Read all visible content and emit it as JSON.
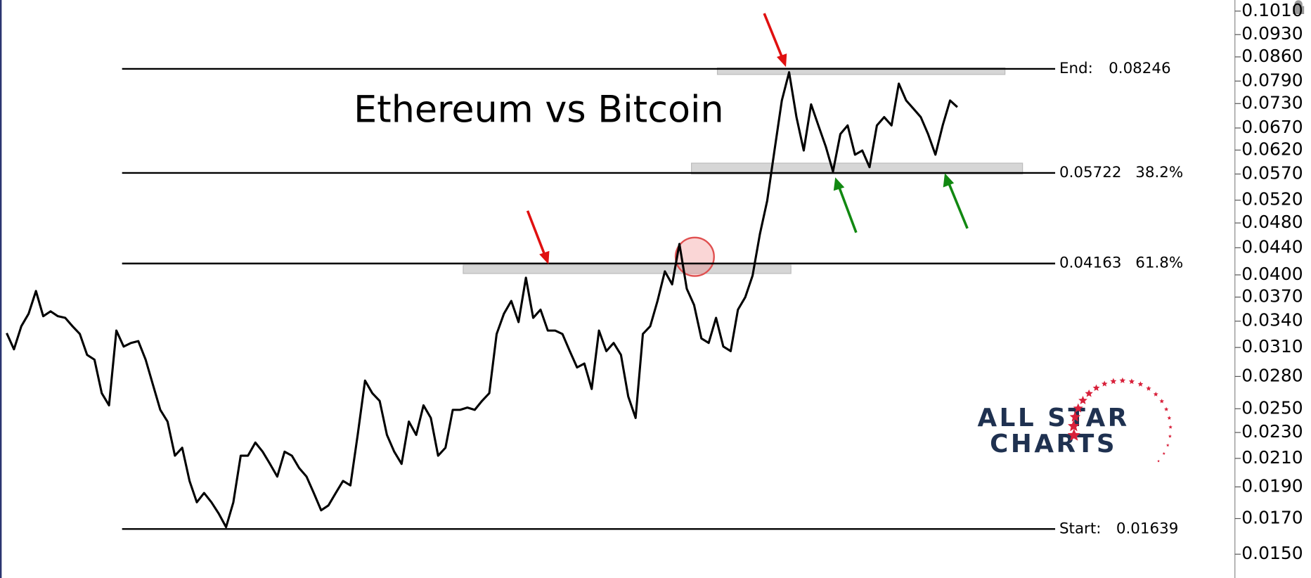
{
  "chart_data": {
    "type": "line",
    "title": "Ethereum vs Bitcoin",
    "color": "#000000",
    "log_scale": true,
    "values": [
      0.0326,
      0.0308,
      0.0334,
      0.0349,
      0.0378,
      0.0346,
      0.0352,
      0.0346,
      0.0344,
      0.0334,
      0.0325,
      0.0302,
      0.0297,
      0.0264,
      0.0253,
      0.0329,
      0.0311,
      0.0315,
      0.0317,
      0.0297,
      0.0272,
      0.0249,
      0.0239,
      0.0212,
      0.0218,
      0.0194,
      0.018,
      0.0186,
      0.018,
      0.0173,
      0.0165,
      0.018,
      0.0212,
      0.0212,
      0.0222,
      0.0215,
      0.0206,
      0.0197,
      0.0215,
      0.0212,
      0.0203,
      0.0197,
      0.0186,
      0.0175,
      0.0178,
      0.0186,
      0.0194,
      0.0191,
      0.0228,
      0.0276,
      0.0264,
      0.0257,
      0.0228,
      0.0215,
      0.0206,
      0.0239,
      0.0228,
      0.0253,
      0.0242,
      0.0212,
      0.0218,
      0.0249,
      0.0249,
      0.0251,
      0.0249,
      0.0257,
      0.0264,
      0.0325,
      0.0349,
      0.0365,
      0.0339,
      0.0396,
      0.0344,
      0.0354,
      0.0329,
      0.0329,
      0.0325,
      0.0306,
      0.0289,
      0.0293,
      0.0268,
      0.0329,
      0.0306,
      0.0315,
      0.0302,
      0.0261,
      0.0242,
      0.0325,
      0.0334,
      0.0365,
      0.0405,
      0.0387,
      0.0446,
      0.0381,
      0.036,
      0.032,
      0.0315,
      0.0344,
      0.0311,
      0.0306,
      0.0354,
      0.037,
      0.0399,
      0.0462,
      0.0519,
      0.0619,
      0.0738,
      0.0815,
      0.0696,
      0.0619,
      0.0728,
      0.0676,
      0.0628,
      0.0575,
      0.0656,
      0.0676,
      0.061,
      0.0619,
      0.0584,
      0.0676,
      0.0696,
      0.0676,
      0.0783,
      0.0738,
      0.0717,
      0.0696,
      0.0656,
      0.061,
      0.0676,
      0.0738,
      0.0721
    ],
    "ylim": [
      0.0138,
      0.105
    ],
    "yticks": [
      {
        "value": 0.015,
        "label": "0.0150"
      },
      {
        "value": 0.017,
        "label": "0.0170"
      },
      {
        "value": 0.019,
        "label": "0.0190"
      },
      {
        "value": 0.021,
        "label": "0.0210"
      },
      {
        "value": 0.023,
        "label": "0.0230"
      },
      {
        "value": 0.025,
        "label": "0.0250"
      },
      {
        "value": 0.028,
        "label": "0.0280"
      },
      {
        "value": 0.031,
        "label": "0.0310"
      },
      {
        "value": 0.034,
        "label": "0.0340"
      },
      {
        "value": 0.037,
        "label": "0.0370"
      },
      {
        "value": 0.04,
        "label": "0.0400"
      },
      {
        "value": 0.044,
        "label": "0.0440"
      },
      {
        "value": 0.048,
        "label": "0.0480"
      },
      {
        "value": 0.052,
        "label": "0.0520"
      },
      {
        "value": 0.057,
        "label": "0.0570"
      },
      {
        "value": 0.062,
        "label": "0.0620"
      },
      {
        "value": 0.067,
        "label": "0.0670"
      },
      {
        "value": 0.073,
        "label": "0.0730"
      },
      {
        "value": 0.079,
        "label": "0.0790"
      },
      {
        "value": 0.086,
        "label": "0.0860"
      },
      {
        "value": 0.093,
        "label": "0.0930"
      },
      {
        "value": 0.101,
        "label": "0.1010"
      }
    ],
    "levels": [
      {
        "name": "End:",
        "value": 0.08246
      },
      {
        "value": 0.05722,
        "percent": "38.2%"
      },
      {
        "value": 0.04163,
        "percent": "61.8%"
      },
      {
        "name": "Start:",
        "value": 0.01639
      }
    ],
    "logo": [
      "ALL STAR",
      "CHARTS"
    ]
  }
}
